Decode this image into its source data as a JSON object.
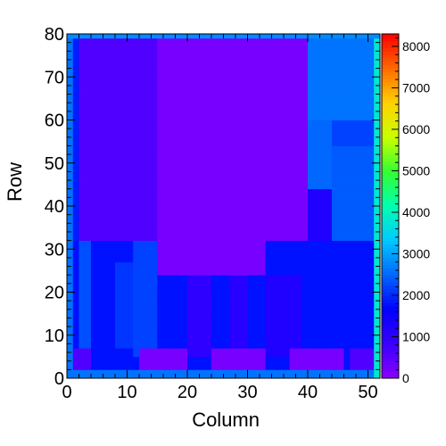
{
  "chart_data": {
    "type": "heatmap",
    "title": "",
    "xlabel": "Column",
    "ylabel": "Row",
    "xlim": [
      0,
      52
    ],
    "ylim": [
      0,
      80
    ],
    "x_ticks": [
      0,
      10,
      20,
      30,
      40,
      50
    ],
    "y_ticks": [
      0,
      10,
      20,
      30,
      40,
      50,
      60,
      70,
      80
    ],
    "n_columns": 52,
    "n_rows": 80,
    "z_range": [
      0,
      8300
    ],
    "colorbar_ticks": [
      0,
      1000,
      2000,
      3000,
      4000,
      5000,
      6000,
      7000,
      8000
    ],
    "palette": [
      "#8a00ff",
      "#3a00ff",
      "#0000ff",
      "#0066ff",
      "#00c8ff",
      "#00ffb0",
      "#33ff33",
      "#c8ff00",
      "#ffd200",
      "#ff6a00",
      "#ff0000"
    ],
    "regions": [
      {
        "cols": [
          0,
          52
        ],
        "rows": [
          0,
          80
        ],
        "value": 1900
      },
      {
        "cols": [
          0,
          52
        ],
        "rows": [
          0,
          32
        ],
        "value": 1800
      },
      {
        "cols": [
          2,
          15
        ],
        "rows": [
          32,
          79
        ],
        "value": 600
      },
      {
        "cols": [
          15,
          40
        ],
        "rows": [
          32,
          79
        ],
        "value": 200
      },
      {
        "cols": [
          15,
          33
        ],
        "rows": [
          24,
          32
        ],
        "value": 200
      },
      {
        "cols": [
          40,
          52
        ],
        "rows": [
          60,
          79
        ],
        "value": 2600
      },
      {
        "cols": [
          40,
          44
        ],
        "rows": [
          44,
          60
        ],
        "value": 2500
      },
      {
        "cols": [
          40,
          44
        ],
        "rows": [
          32,
          44
        ],
        "value": 1200
      },
      {
        "cols": [
          44,
          51
        ],
        "rows": [
          32,
          54
        ],
        "value": 2400
      },
      {
        "cols": [
          44,
          51
        ],
        "rows": [
          54,
          60
        ],
        "value": 2200
      },
      {
        "cols": [
          11,
          15
        ],
        "rows": [
          5,
          32
        ],
        "value": 2200
      },
      {
        "cols": [
          20,
          24
        ],
        "rows": [
          5,
          24
        ],
        "value": 1000
      },
      {
        "cols": [
          27,
          30
        ],
        "rows": [
          5,
          24
        ],
        "value": 1100
      },
      {
        "cols": [
          2,
          4
        ],
        "rows": [
          7,
          32
        ],
        "value": 2300
      },
      {
        "cols": [
          8,
          11
        ],
        "rows": [
          7,
          27
        ],
        "value": 2100
      },
      {
        "cols": [
          33,
          39
        ],
        "rows": [
          5,
          24
        ],
        "value": 1200
      },
      {
        "cols": [
          12,
          20
        ],
        "rows": [
          2,
          7
        ],
        "value": 200
      },
      {
        "cols": [
          24,
          33
        ],
        "rows": [
          2,
          7
        ],
        "value": 200
      },
      {
        "cols": [
          37,
          46
        ],
        "rows": [
          2,
          7
        ],
        "value": 200
      },
      {
        "cols": [
          1,
          4
        ],
        "rows": [
          2,
          7
        ],
        "value": 600
      },
      {
        "cols": [
          47,
          51
        ],
        "rows": [
          2,
          7
        ],
        "value": 600
      },
      {
        "cols": [
          0,
          52
        ],
        "rows": [
          0,
          2
        ],
        "value": 2600
      },
      {
        "cols": [
          51,
          52
        ],
        "rows": [
          0,
          80
        ],
        "value": 3800
      },
      {
        "cols": [
          0,
          1
        ],
        "rows": [
          0,
          80
        ],
        "value": 2600
      },
      {
        "cols": [
          0,
          52
        ],
        "rows": [
          79,
          80
        ],
        "value": 2800
      }
    ]
  }
}
